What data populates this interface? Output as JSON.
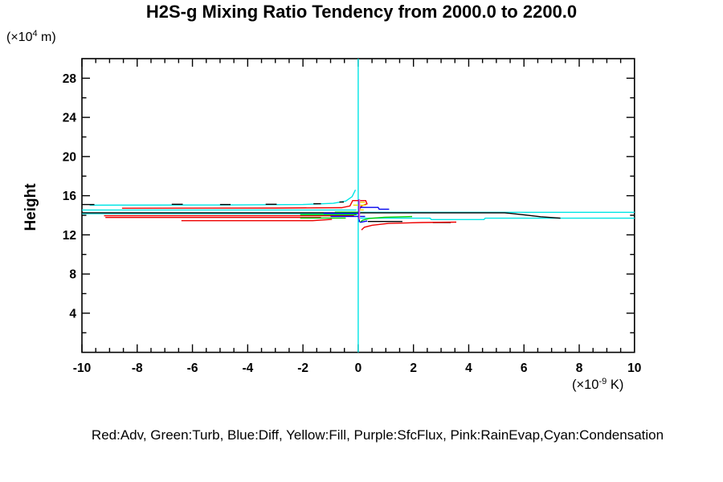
{
  "chart_data": {
    "type": "line",
    "title": "H2S-g Mixing Ratio Tendency from 2000.0 to 2200.0",
    "ylabel": "Height",
    "y_axis_unit": {
      "pre": "(×10",
      "sup": "4",
      "post": " m)"
    },
    "x_axis_unit": {
      "pre": "(×10",
      "sup": "-9",
      "post": " K)"
    },
    "xlim": [
      -10,
      10
    ],
    "ylim": [
      0,
      30
    ],
    "x_ticks": [
      -10,
      -8,
      -6,
      -4,
      -2,
      0,
      2,
      4,
      6,
      8,
      10
    ],
    "x_tick_labels": [
      "-10",
      "-8",
      "-6",
      "-4",
      "-2",
      "0",
      "2",
      "4",
      "6",
      "8",
      "10"
    ],
    "x_minor_step": 0.5,
    "y_ticks": [
      4,
      8,
      12,
      16,
      20,
      24,
      28
    ],
    "y_tick_labels": [
      "4",
      "8",
      "12",
      "16",
      "20",
      "24",
      "28"
    ],
    "y_minor_step": 2,
    "grid": false,
    "legend_position": "bottom",
    "legend_text": "Red:Adv, Green:Turb, Blue:Diff, Yellow:Fill, Purple:SfcFlux, Pink:RainEvap,Cyan:Condensation",
    "zero_line": {
      "x": 0,
      "color": "#00e5e5"
    },
    "series": [
      {
        "name": "Condensation",
        "color_name": "Cyan",
        "color": "#00e5e5",
        "segments": [
          [
            [
              -9.72,
              15.03
            ],
            [
              -5,
              15.05
            ],
            [
              -2,
              15.1
            ],
            [
              -0.9,
              15.22
            ],
            [
              -0.45,
              15.45
            ],
            [
              -0.22,
              15.9
            ],
            [
              -0.1,
              16.6
            ]
          ],
          [
            [
              -10,
              14.54
            ],
            [
              -0.06,
              14.54
            ]
          ],
          [
            [
              -10,
              14.17
            ],
            [
              0,
              14.17
            ]
          ],
          [
            [
              0,
              14.3
            ],
            [
              10,
              14.3
            ]
          ],
          [
            [
              0.07,
              13.7
            ],
            [
              2.6,
              13.7
            ],
            [
              2.65,
              13.56
            ],
            [
              4.55,
              13.56
            ],
            [
              4.6,
              13.7
            ],
            [
              10,
              13.7
            ]
          ]
        ]
      },
      {
        "name": "",
        "color_name": "Black",
        "color": "#000000",
        "segments": [
          [
            [
              -10,
              14.25
            ],
            [
              5.3,
              14.25
            ],
            [
              6.0,
              14.05
            ],
            [
              6.6,
              13.85
            ],
            [
              7.32,
              13.7
            ]
          ],
          [
            [
              -10,
              15.1
            ],
            [
              -9.55,
              15.1
            ]
          ],
          [
            [
              -6.75,
              15.12
            ],
            [
              -6.35,
              15.12
            ]
          ],
          [
            [
              -5.0,
              15.1
            ],
            [
              -4.62,
              15.1
            ]
          ],
          [
            [
              -3.35,
              15.12
            ],
            [
              -2.95,
              15.12
            ]
          ],
          [
            [
              -1.62,
              15.18
            ],
            [
              -1.35,
              15.18
            ]
          ],
          [
            [
              -0.68,
              15.35
            ],
            [
              -0.52,
              15.35
            ]
          ],
          [
            [
              0.35,
              13.37
            ],
            [
              1.6,
              13.37
            ]
          ],
          [
            [
              2.7,
              13.26
            ],
            [
              3.35,
              13.26
            ]
          ]
        ]
      },
      {
        "name": "Adv",
        "color_name": "Red",
        "color": "#ee0000",
        "segments": [
          [
            [
              -8.55,
              14.72
            ],
            [
              -3,
              14.74
            ],
            [
              -0.6,
              14.78
            ],
            [
              -0.3,
              14.95
            ],
            [
              -0.2,
              15.5
            ],
            [
              0.27,
              15.5
            ],
            [
              0.32,
              15.17
            ],
            [
              0.12,
              14.95
            ],
            [
              0.05,
              14.6
            ]
          ],
          [
            [
              -9.2,
              13.95
            ],
            [
              -0.2,
              13.95
            ],
            [
              -0.1,
              14.1
            ]
          ],
          [
            [
              -9.15,
              13.78
            ],
            [
              -1.35,
              13.78
            ]
          ],
          [
            [
              -6.4,
              13.45
            ],
            [
              -1.65,
              13.45
            ],
            [
              -0.95,
              13.58
            ]
          ],
          [
            [
              0.12,
              12.5
            ],
            [
              0.22,
              12.78
            ],
            [
              0.5,
              12.98
            ],
            [
              1.1,
              13.17
            ],
            [
              2.3,
              13.26
            ],
            [
              3.55,
              13.3
            ]
          ]
        ]
      },
      {
        "name": "Turb",
        "color_name": "Green",
        "color": "#00cc00",
        "segments": [
          [
            [
              -0.85,
              14.32
            ],
            [
              0,
              14.32
            ]
          ],
          [
            [
              -2.1,
              14.06
            ],
            [
              -0.05,
              14.06
            ]
          ],
          [
            [
              -2.1,
              13.72
            ],
            [
              -0.45,
              13.72
            ]
          ],
          [
            [
              0.06,
              13.28
            ],
            [
              0.16,
              13.5
            ],
            [
              0.4,
              13.68
            ],
            [
              0.95,
              13.8
            ],
            [
              1.95,
              13.87
            ]
          ]
        ]
      },
      {
        "name": "Diff",
        "color_name": "Blue",
        "color": "#0000ee",
        "segments": [
          [
            [
              0.03,
              14.93
            ],
            [
              0.1,
              14.8
            ],
            [
              0.72,
              14.8
            ],
            [
              0.76,
              14.62
            ],
            [
              1.12,
              14.62
            ]
          ],
          [
            [
              -1.25,
              14.2
            ],
            [
              0.08,
              14.2
            ]
          ],
          [
            [
              -1.0,
              13.88
            ],
            [
              0.25,
              13.88
            ]
          ],
          [
            [
              0.04,
              14.95
            ],
            [
              0.04,
              13.3
            ]
          ],
          [
            [
              0.07,
              13.28
            ],
            [
              0.33,
              13.42
            ]
          ]
        ]
      },
      {
        "name": "Fill",
        "color_name": "Yellow",
        "color": "#f0e000",
        "segments": [
          [
            [
              -0.18,
              15.03
            ],
            [
              0.28,
              15.03
            ]
          ],
          [
            [
              0.03,
              15.33
            ],
            [
              0.25,
              15.33
            ]
          ],
          [
            [
              0.02,
              14.55
            ],
            [
              0.2,
              14.55
            ]
          ],
          [
            [
              0.04,
              15.4
            ],
            [
              0.04,
              14.3
            ]
          ]
        ]
      },
      {
        "name": "SfcFlux",
        "color_name": "Purple",
        "color": "#9900cc",
        "segments": [
          [
            [
              0.02,
              15.62
            ],
            [
              0.02,
              13.62
            ]
          ]
        ]
      },
      {
        "name": "RainEvap",
        "color_name": "Pink",
        "color": "#d977d9",
        "segments": [
          [
            [
              0.05,
              15.66
            ],
            [
              0.05,
              13.55
            ]
          ]
        ]
      }
    ]
  }
}
